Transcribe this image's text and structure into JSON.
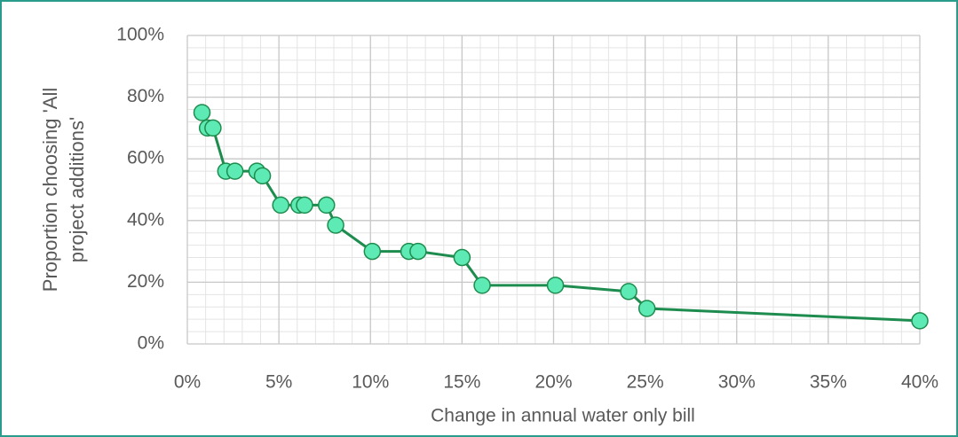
{
  "chart_data": {
    "type": "line",
    "xlabel": "Change in annual water only bill",
    "ylabel": [
      "Proportion choosing 'All",
      "project additions'"
    ],
    "x": [
      0.8,
      1.1,
      1.4,
      2.1,
      2.6,
      3.8,
      4.1,
      5.1,
      6.1,
      6.4,
      7.6,
      8.1,
      10.1,
      12.1,
      12.6,
      15.0,
      16.1,
      20.1,
      24.1,
      25.1,
      40.0
    ],
    "series": [
      {
        "color": "#1e8c4e",
        "marker_color": "#5eeab4",
        "values": [
          75,
          70,
          70,
          56,
          56,
          56,
          54.5,
          45,
          45,
          45,
          45,
          38.5,
          30,
          30,
          30,
          28,
          19,
          19,
          17,
          11.5,
          7.5
        ]
      }
    ],
    "xlim": [
      0,
      40
    ],
    "xticks": [
      {
        "value": 0,
        "label": "0%"
      },
      {
        "value": 5,
        "label": "5%"
      },
      {
        "value": 10,
        "label": "10%"
      },
      {
        "value": 15,
        "label": "15%"
      },
      {
        "value": 20,
        "label": "20%"
      },
      {
        "value": 25,
        "label": "25%"
      },
      {
        "value": 30,
        "label": "30%"
      },
      {
        "value": 35,
        "label": "35%"
      },
      {
        "value": 40,
        "label": "40%"
      }
    ],
    "ylim": [
      0,
      100
    ],
    "yticks": [
      {
        "value": 0,
        "label": "0%"
      },
      {
        "value": 20,
        "label": "20%"
      },
      {
        "value": 40,
        "label": "40%"
      },
      {
        "value": 60,
        "label": "60%"
      },
      {
        "value": 80,
        "label": "80%"
      },
      {
        "value": 100,
        "label": "100%"
      }
    ],
    "grid": true,
    "xminor": 1,
    "yminor": 4
  }
}
